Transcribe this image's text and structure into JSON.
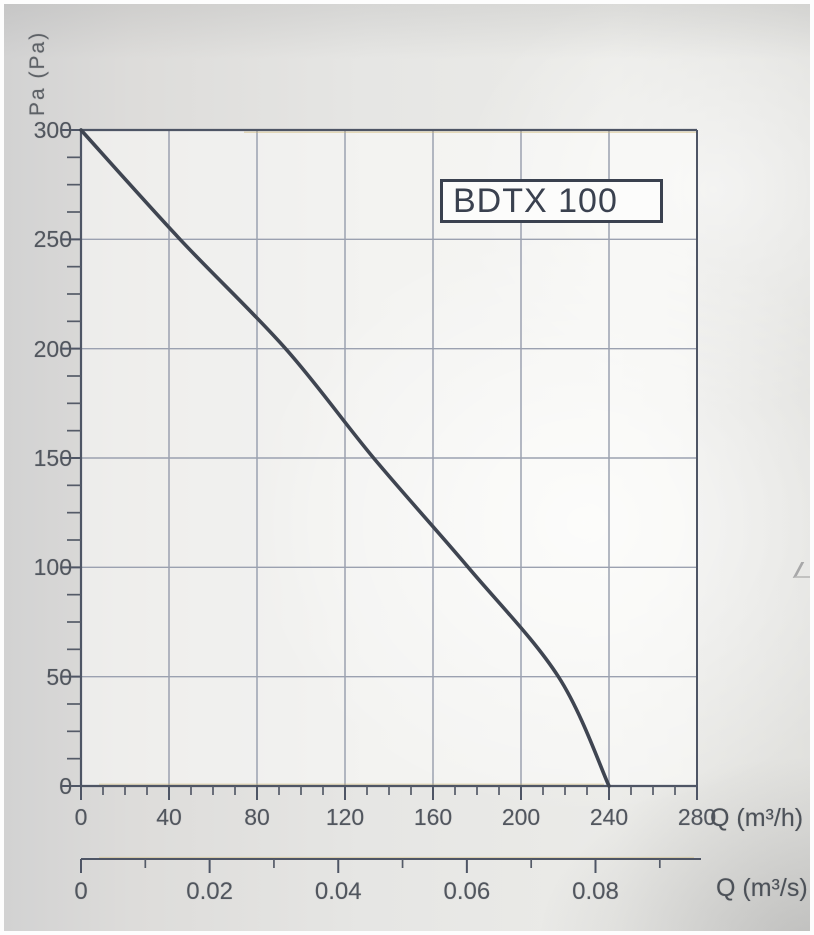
{
  "title_box": {
    "label": "BDTX 100"
  },
  "colors": {
    "frame": "#4e5565",
    "grid": "#9ba1b0",
    "curve": "#3f4551",
    "tick": "#555b68",
    "fringe_yellow": "#cdb36a",
    "paper": "#e6e6e4",
    "plot_fill": "rgba(253,253,251,0.55)"
  },
  "chart_data": {
    "type": "line",
    "title": "BDTX 100",
    "grid": true,
    "y_axis": {
      "label": "Pa (Pa)",
      "range": [
        0,
        300
      ],
      "tick_values": [
        300,
        250,
        200,
        150,
        100,
        50,
        0
      ],
      "tick_labels": [
        "300",
        "250",
        "200",
        "150",
        "100",
        "50",
        "0"
      ],
      "minor_step": 12.5
    },
    "x_axis_primary": {
      "label": "Q (m³/h)",
      "range": [
        0,
        280
      ],
      "tick_values": [
        0,
        40,
        80,
        120,
        160,
        200,
        240,
        280
      ],
      "tick_labels": [
        "0",
        "40",
        "80",
        "120",
        "160",
        "200",
        "240",
        "280"
      ],
      "minor_step": 10
    },
    "x_axis_secondary": {
      "label": "Q (m³/s)",
      "range": [
        0,
        0.09
      ],
      "tick_values": [
        0,
        0.02,
        0.04,
        0.06,
        0.08
      ],
      "tick_labels": [
        "0",
        "0.02",
        "0.04",
        "0.06",
        "0.08"
      ],
      "minor_step": 0.01
    },
    "series": [
      {
        "name": "BDTX 100",
        "points": [
          [
            0,
            300
          ],
          [
            45,
            250
          ],
          [
            93,
            200
          ],
          [
            133,
            150
          ],
          [
            176,
            100
          ],
          [
            217,
            50
          ],
          [
            240,
            0
          ]
        ]
      }
    ]
  }
}
